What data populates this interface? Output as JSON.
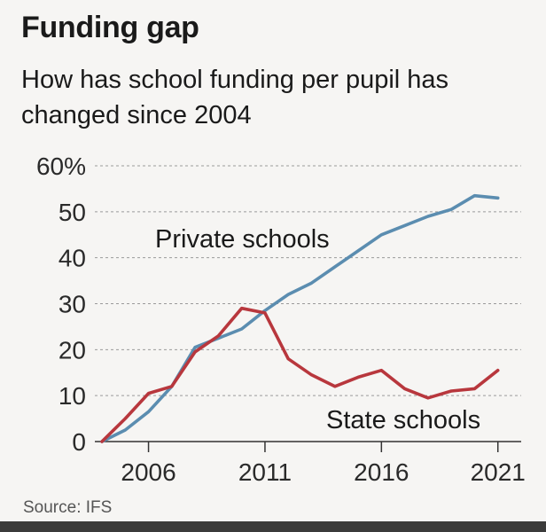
{
  "header": {
    "title": "Funding gap",
    "subtitle": "How has school funding per pupil has changed since 2004"
  },
  "footer": {
    "source": "Source: IFS"
  },
  "chart_data": {
    "type": "line",
    "title": "Funding gap",
    "subtitle": "How has school funding per pupil has changed since 2004",
    "xlabel": "",
    "ylabel": "",
    "xlim": [
      2004,
      2022
    ],
    "ylim": [
      0,
      60
    ],
    "grid": true,
    "x_ticks": [
      2006,
      2011,
      2016,
      2021
    ],
    "x_tick_labels": [
      "2006",
      "2011",
      "2016",
      "2021"
    ],
    "y_ticks": [
      0,
      10,
      20,
      30,
      40,
      50,
      60
    ],
    "y_tick_labels": [
      "0",
      "10",
      "20",
      "30",
      "40",
      "50",
      "60%"
    ],
    "series": [
      {
        "name": "Private schools",
        "color": "#5b8db0",
        "x": [
          2004,
          2005,
          2006,
          2007,
          2008,
          2009,
          2010,
          2011,
          2012,
          2013,
          2014,
          2015,
          2016,
          2017,
          2018,
          2019,
          2020,
          2021
        ],
        "values": [
          0,
          2.5,
          6.5,
          12,
          20.5,
          22.5,
          24.5,
          28.5,
          32,
          34.5,
          38,
          41.5,
          45,
          47,
          49,
          50.5,
          53.5,
          53
        ]
      },
      {
        "name": "State schools",
        "color": "#b8373d",
        "x": [
          2004,
          2005,
          2006,
          2007,
          2008,
          2009,
          2010,
          2011,
          2012,
          2013,
          2014,
          2015,
          2016,
          2017,
          2018,
          2019,
          2020,
          2021
        ],
        "values": [
          0,
          5,
          10.5,
          12,
          19.5,
          23,
          29,
          28,
          18,
          14.5,
          12,
          14,
          15.5,
          11.5,
          9.5,
          11,
          11.5,
          15.5
        ]
      }
    ]
  }
}
